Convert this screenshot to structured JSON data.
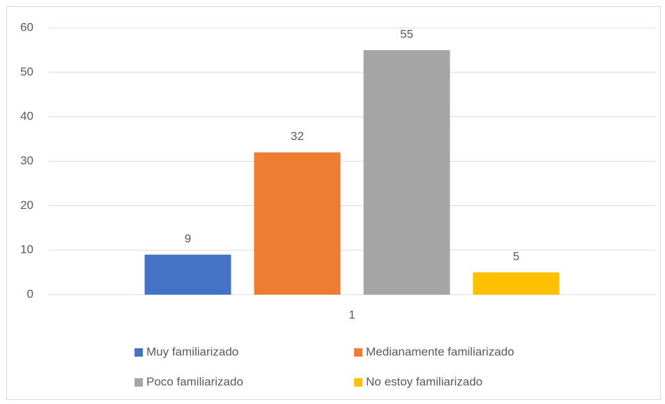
{
  "chart_data": {
    "type": "bar",
    "categories": [
      "1"
    ],
    "series": [
      {
        "name": "Muy familiarizado",
        "color": "#4472c4",
        "values": [
          9
        ]
      },
      {
        "name": "Medianamente familiarizado",
        "color": "#ed7d31",
        "values": [
          32
        ]
      },
      {
        "name": "Poco familiarizado",
        "color": "#a5a5a5",
        "values": [
          55
        ]
      },
      {
        "name": "No estoy familiarizado",
        "color": "#ffc000",
        "values": [
          5
        ]
      }
    ],
    "ylim": [
      0,
      60
    ],
    "yticks": [
      0,
      10,
      20,
      30,
      40,
      50,
      60
    ],
    "grid": true,
    "legend": "bottom"
  }
}
